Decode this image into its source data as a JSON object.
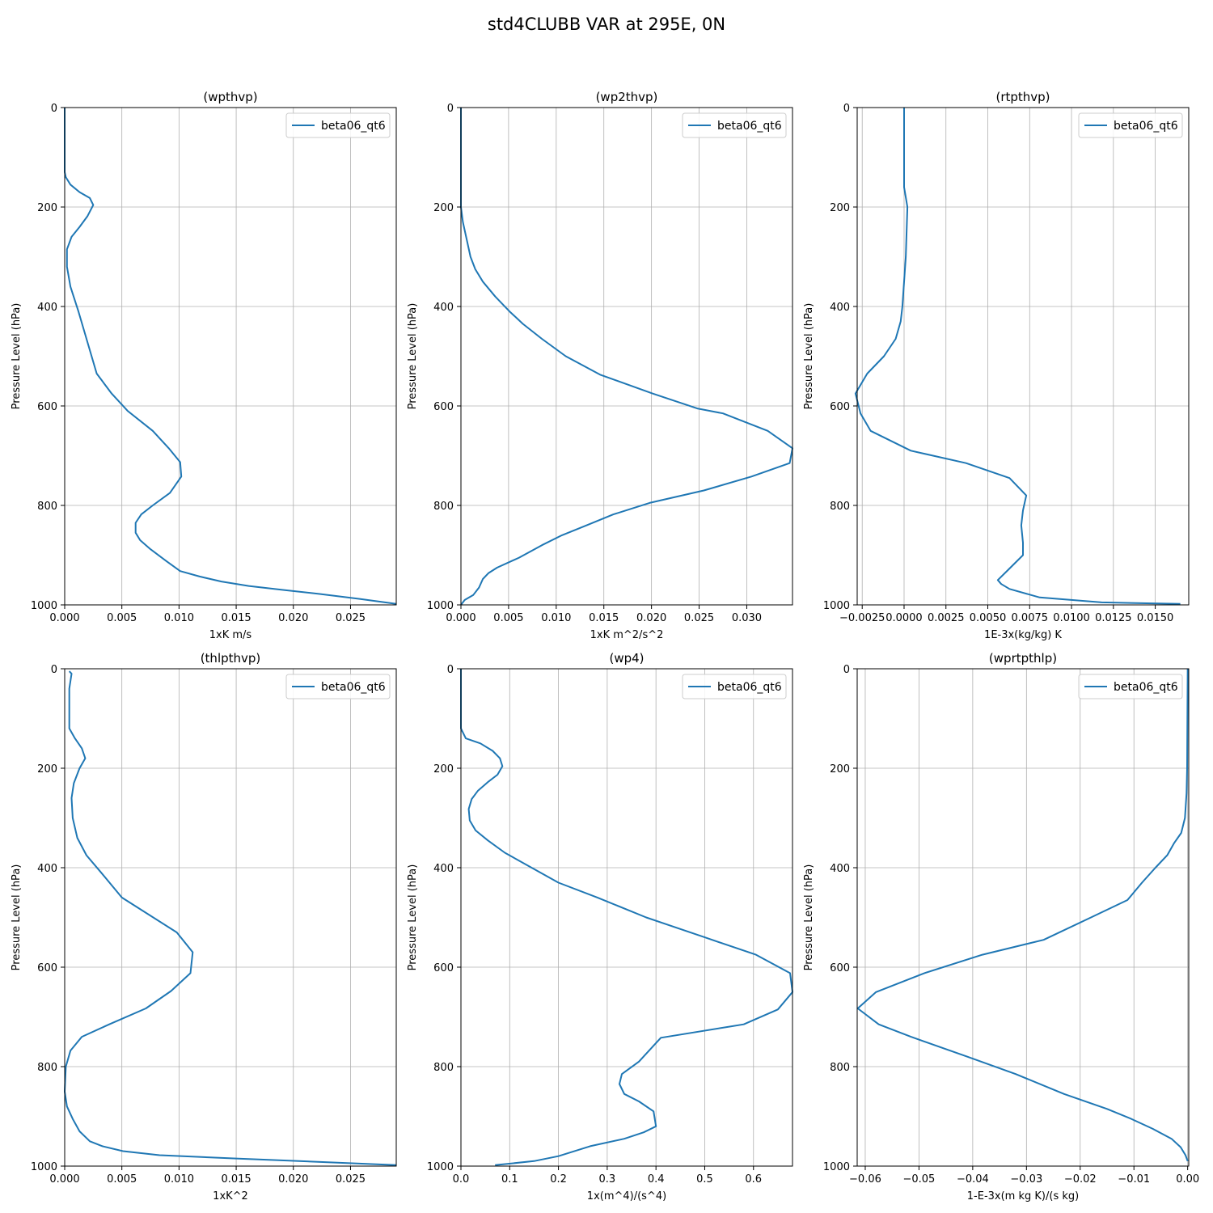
{
  "figure": {
    "suptitle": "std4CLUBB VAR at 295E, 0N"
  },
  "colors": {
    "series": "#1f77b4",
    "grid": "#b0b0b0",
    "axis": "#000000"
  },
  "chart_data": [
    {
      "type": "line",
      "title": "(wpthvp)",
      "xlabel": "1xK m/s",
      "ylabel": "Pressure Level (hPa)",
      "xlim": [
        0,
        0.029
      ],
      "ylim": [
        1000,
        0
      ],
      "xticks": [
        0,
        0.005,
        0.01,
        0.015,
        0.02,
        0.025
      ],
      "xtick_labels": [
        "0.000",
        "0.005",
        "0.010",
        "0.015",
        "0.020",
        "0.025"
      ],
      "yticks": [
        0,
        200,
        400,
        600,
        800,
        1000
      ],
      "ytick_labels": [
        "0",
        "200",
        "400",
        "600",
        "800",
        "1000"
      ],
      "grid": true,
      "legend_position": "upper right",
      "series": [
        {
          "name": "beta06_qt6",
          "x": [
            0,
            0,
            0.0001,
            0.0005,
            0.0013,
            0.0022,
            0.0025,
            0.002,
            0.0013,
            0.0006,
            0.0002,
            0.0002,
            0.0005,
            0.0012,
            0.0028,
            0.0041,
            0.0055,
            0.0077,
            0.0091,
            0.0101,
            0.0102,
            0.0092,
            0.0077,
            0.0067,
            0.0062,
            0.0062,
            0.0066,
            0.0075,
            0.0089,
            0.0101,
            0.0118,
            0.0137,
            0.0161,
            0.0191,
            0.0223,
            0.0258,
            0.029
          ],
          "y": [
            0,
            130,
            140,
            155,
            170,
            182,
            196,
            218,
            240,
            260,
            285,
            320,
            360,
            410,
            535,
            575,
            610,
            650,
            685,
            713,
            742,
            775,
            800,
            818,
            835,
            855,
            870,
            888,
            912,
            932,
            943,
            953,
            962,
            970,
            978,
            988,
            998
          ]
        }
      ]
    },
    {
      "type": "line",
      "title": "(wp2thvp)",
      "xlabel": "1xK m^2/s^2",
      "ylabel": "Pressure Level (hPa)",
      "xlim": [
        0,
        0.0348
      ],
      "ylim": [
        1000,
        0
      ],
      "xticks": [
        0,
        0.005,
        0.01,
        0.015,
        0.02,
        0.025,
        0.03
      ],
      "xtick_labels": [
        "0.000",
        "0.005",
        "0.010",
        "0.015",
        "0.020",
        "0.025",
        "0.030"
      ],
      "yticks": [
        0,
        200,
        400,
        600,
        800,
        1000
      ],
      "ytick_labels": [
        "0",
        "200",
        "400",
        "600",
        "800",
        "1000"
      ],
      "grid": true,
      "legend_position": "upper right",
      "series": [
        {
          "name": "beta06_qt6",
          "x": [
            0,
            0,
            0.0002,
            0.0006,
            0.001,
            0.0015,
            0.0023,
            0.0036,
            0.0051,
            0.0065,
            0.0085,
            0.011,
            0.0146,
            0.0201,
            0.0248,
            0.0275,
            0.0322,
            0.0348,
            0.0345,
            0.0305,
            0.0255,
            0.0198,
            0.016,
            0.0132,
            0.0106,
            0.0085,
            0.0061,
            0.0038,
            0.0029,
            0.0023,
            0.0019,
            0.0013,
            0.0004,
            0
          ],
          "y": [
            0,
            200,
            230,
            265,
            300,
            325,
            350,
            380,
            410,
            435,
            465,
            500,
            537,
            575,
            605,
            615,
            650,
            685,
            715,
            742,
            770,
            795,
            818,
            840,
            860,
            880,
            905,
            925,
            936,
            948,
            965,
            980,
            990,
            1000
          ]
        }
      ]
    },
    {
      "type": "line",
      "title": "(rtpthvp)",
      "xlabel": "1E-3x(kg/kg) K",
      "ylabel": "Pressure Level (hPa)",
      "xlim": [
        -0.0028,
        0.017
      ],
      "ylim": [
        1000,
        0
      ],
      "xticks": [
        -0.0025,
        0,
        0.0025,
        0.005,
        0.0075,
        0.01,
        0.0125,
        0.015
      ],
      "xtick_labels": [
        "−0.0025",
        "0.0000",
        "0.0025",
        "0.0050",
        "0.0075",
        "0.0100",
        "0.0125",
        "0.0150"
      ],
      "yticks": [
        0,
        200,
        400,
        600,
        800,
        1000
      ],
      "ytick_labels": [
        "0",
        "200",
        "400",
        "600",
        "800",
        "1000"
      ],
      "grid": true,
      "legend_position": "upper right",
      "series": [
        {
          "name": "beta06_qt6",
          "x": [
            0,
            0,
            0.0002,
            0.0001,
            -0.0001,
            -0.0002,
            -0.0005,
            -0.0012,
            -0.0022,
            -0.0029,
            -0.0026,
            -0.002,
            0.0004,
            0.0037,
            0.0063,
            0.0073,
            0.0071,
            0.007,
            0.0071,
            0.0071,
            0.0062,
            0.0056,
            0.0058,
            0.0063,
            0.0081,
            0.0118,
            0.0165
          ],
          "y": [
            0,
            160,
            200,
            300,
            400,
            430,
            465,
            500,
            535,
            575,
            615,
            650,
            690,
            715,
            745,
            780,
            810,
            840,
            875,
            900,
            930,
            950,
            958,
            968,
            985,
            995,
            998
          ]
        }
      ]
    },
    {
      "type": "line",
      "title": "(thlpthvp)",
      "xlabel": "1xK^2",
      "ylabel": "Pressure Level (hPa)",
      "xlim": [
        0,
        0.029
      ],
      "ylim": [
        1000,
        0
      ],
      "xticks": [
        0,
        0.005,
        0.01,
        0.015,
        0.02,
        0.025
      ],
      "xtick_labels": [
        "0.000",
        "0.005",
        "0.010",
        "0.015",
        "0.020",
        "0.025"
      ],
      "yticks": [
        0,
        200,
        400,
        600,
        800,
        1000
      ],
      "ytick_labels": [
        "0",
        "200",
        "400",
        "600",
        "800",
        "1000"
      ],
      "grid": true,
      "legend_position": "upper right",
      "series": [
        {
          "name": "beta06_qt6",
          "x": [
            0.0004,
            0.0006,
            0.0004,
            0.0004,
            0.0004,
            0.0009,
            0.0015,
            0.0018,
            0.0013,
            0.0008,
            0.0006,
            0.0007,
            0.0011,
            0.0019,
            0.0032,
            0.005,
            0.0098,
            0.0112,
            0.011,
            0.0093,
            0.0071,
            0.0039,
            0.0015,
            0.0005,
            0.0001,
            0,
            0.0002,
            0.0007,
            0.0013,
            0.0022,
            0.0033,
            0.0051,
            0.0083,
            0.0152,
            0.0205,
            0.029
          ],
          "y": [
            5,
            10,
            40,
            100,
            120,
            140,
            160,
            180,
            200,
            230,
            260,
            300,
            340,
            375,
            410,
            460,
            530,
            570,
            612,
            648,
            683,
            715,
            740,
            768,
            800,
            850,
            880,
            905,
            930,
            950,
            960,
            970,
            978,
            985,
            990,
            998
          ]
        }
      ]
    },
    {
      "type": "line",
      "title": "(wp4)",
      "xlabel": "1x(m^4)/(s^4)",
      "ylabel": "Pressure Level (hPa)",
      "xlim": [
        0,
        0.68
      ],
      "ylim": [
        1000,
        0
      ],
      "xticks": [
        0,
        0.1,
        0.2,
        0.3,
        0.4,
        0.5,
        0.6
      ],
      "xtick_labels": [
        "0.0",
        "0.1",
        "0.2",
        "0.3",
        "0.4",
        "0.5",
        "0.6"
      ],
      "yticks": [
        0,
        200,
        400,
        600,
        800,
        1000
      ],
      "ytick_labels": [
        "0",
        "200",
        "400",
        "600",
        "800",
        "1000"
      ],
      "grid": true,
      "legend_position": "upper right",
      "series": [
        {
          "name": "beta06_qt6",
          "x": [
            0,
            0,
            0.01,
            0.04,
            0.065,
            0.08,
            0.085,
            0.075,
            0.055,
            0.035,
            0.022,
            0.016,
            0.018,
            0.03,
            0.055,
            0.09,
            0.145,
            0.2,
            0.28,
            0.38,
            0.5,
            0.605,
            0.675,
            0.68,
            0.65,
            0.58,
            0.41,
            0.365,
            0.33,
            0.325,
            0.335,
            0.365,
            0.395,
            0.4,
            0.375,
            0.335,
            0.265,
            0.2,
            0.15,
            0.07
          ],
          "y": [
            0,
            120,
            140,
            150,
            165,
            180,
            196,
            213,
            228,
            245,
            262,
            282,
            305,
            325,
            345,
            370,
            400,
            430,
            460,
            500,
            540,
            575,
            612,
            650,
            685,
            715,
            742,
            790,
            815,
            835,
            855,
            870,
            890,
            920,
            932,
            945,
            960,
            980,
            990,
            998
          ]
        }
      ]
    },
    {
      "type": "line",
      "title": "(wprtpthlp)",
      "xlabel": "1-E-3x(m kg K)/(s kg)",
      "ylabel": "Pressure Level (hPa)",
      "xlim": [
        -0.0615,
        0.0002
      ],
      "ylim": [
        1000,
        0
      ],
      "xticks": [
        -0.06,
        -0.05,
        -0.04,
        -0.03,
        -0.02,
        -0.01,
        0
      ],
      "xtick_labels": [
        "−0.06",
        "−0.05",
        "−0.04",
        "−0.03",
        "−0.02",
        "−0.01",
        "0.00"
      ],
      "yticks": [
        0,
        200,
        400,
        600,
        800,
        1000
      ],
      "ytick_labels": [
        "0",
        "200",
        "400",
        "600",
        "800",
        "1000"
      ],
      "grid": true,
      "legend_position": "upper right",
      "series": [
        {
          "name": "beta06_qt6",
          "x": [
            0,
            -0.0001,
            -0.0002,
            -0.0005,
            -0.0012,
            -0.0025,
            -0.0038,
            -0.006,
            -0.0085,
            -0.0112,
            -0.018,
            -0.0268,
            -0.0382,
            -0.049,
            -0.058,
            -0.0614,
            -0.0575,
            -0.0515,
            -0.041,
            -0.032,
            -0.023,
            -0.015,
            -0.0105,
            -0.0065,
            -0.003,
            -0.0013,
            -0.0004,
            0
          ],
          "y": [
            0,
            200,
            250,
            300,
            330,
            350,
            375,
            400,
            430,
            465,
            500,
            545,
            575,
            612,
            650,
            683,
            715,
            740,
            780,
            815,
            855,
            885,
            905,
            925,
            945,
            962,
            978,
            990
          ]
        }
      ]
    }
  ]
}
